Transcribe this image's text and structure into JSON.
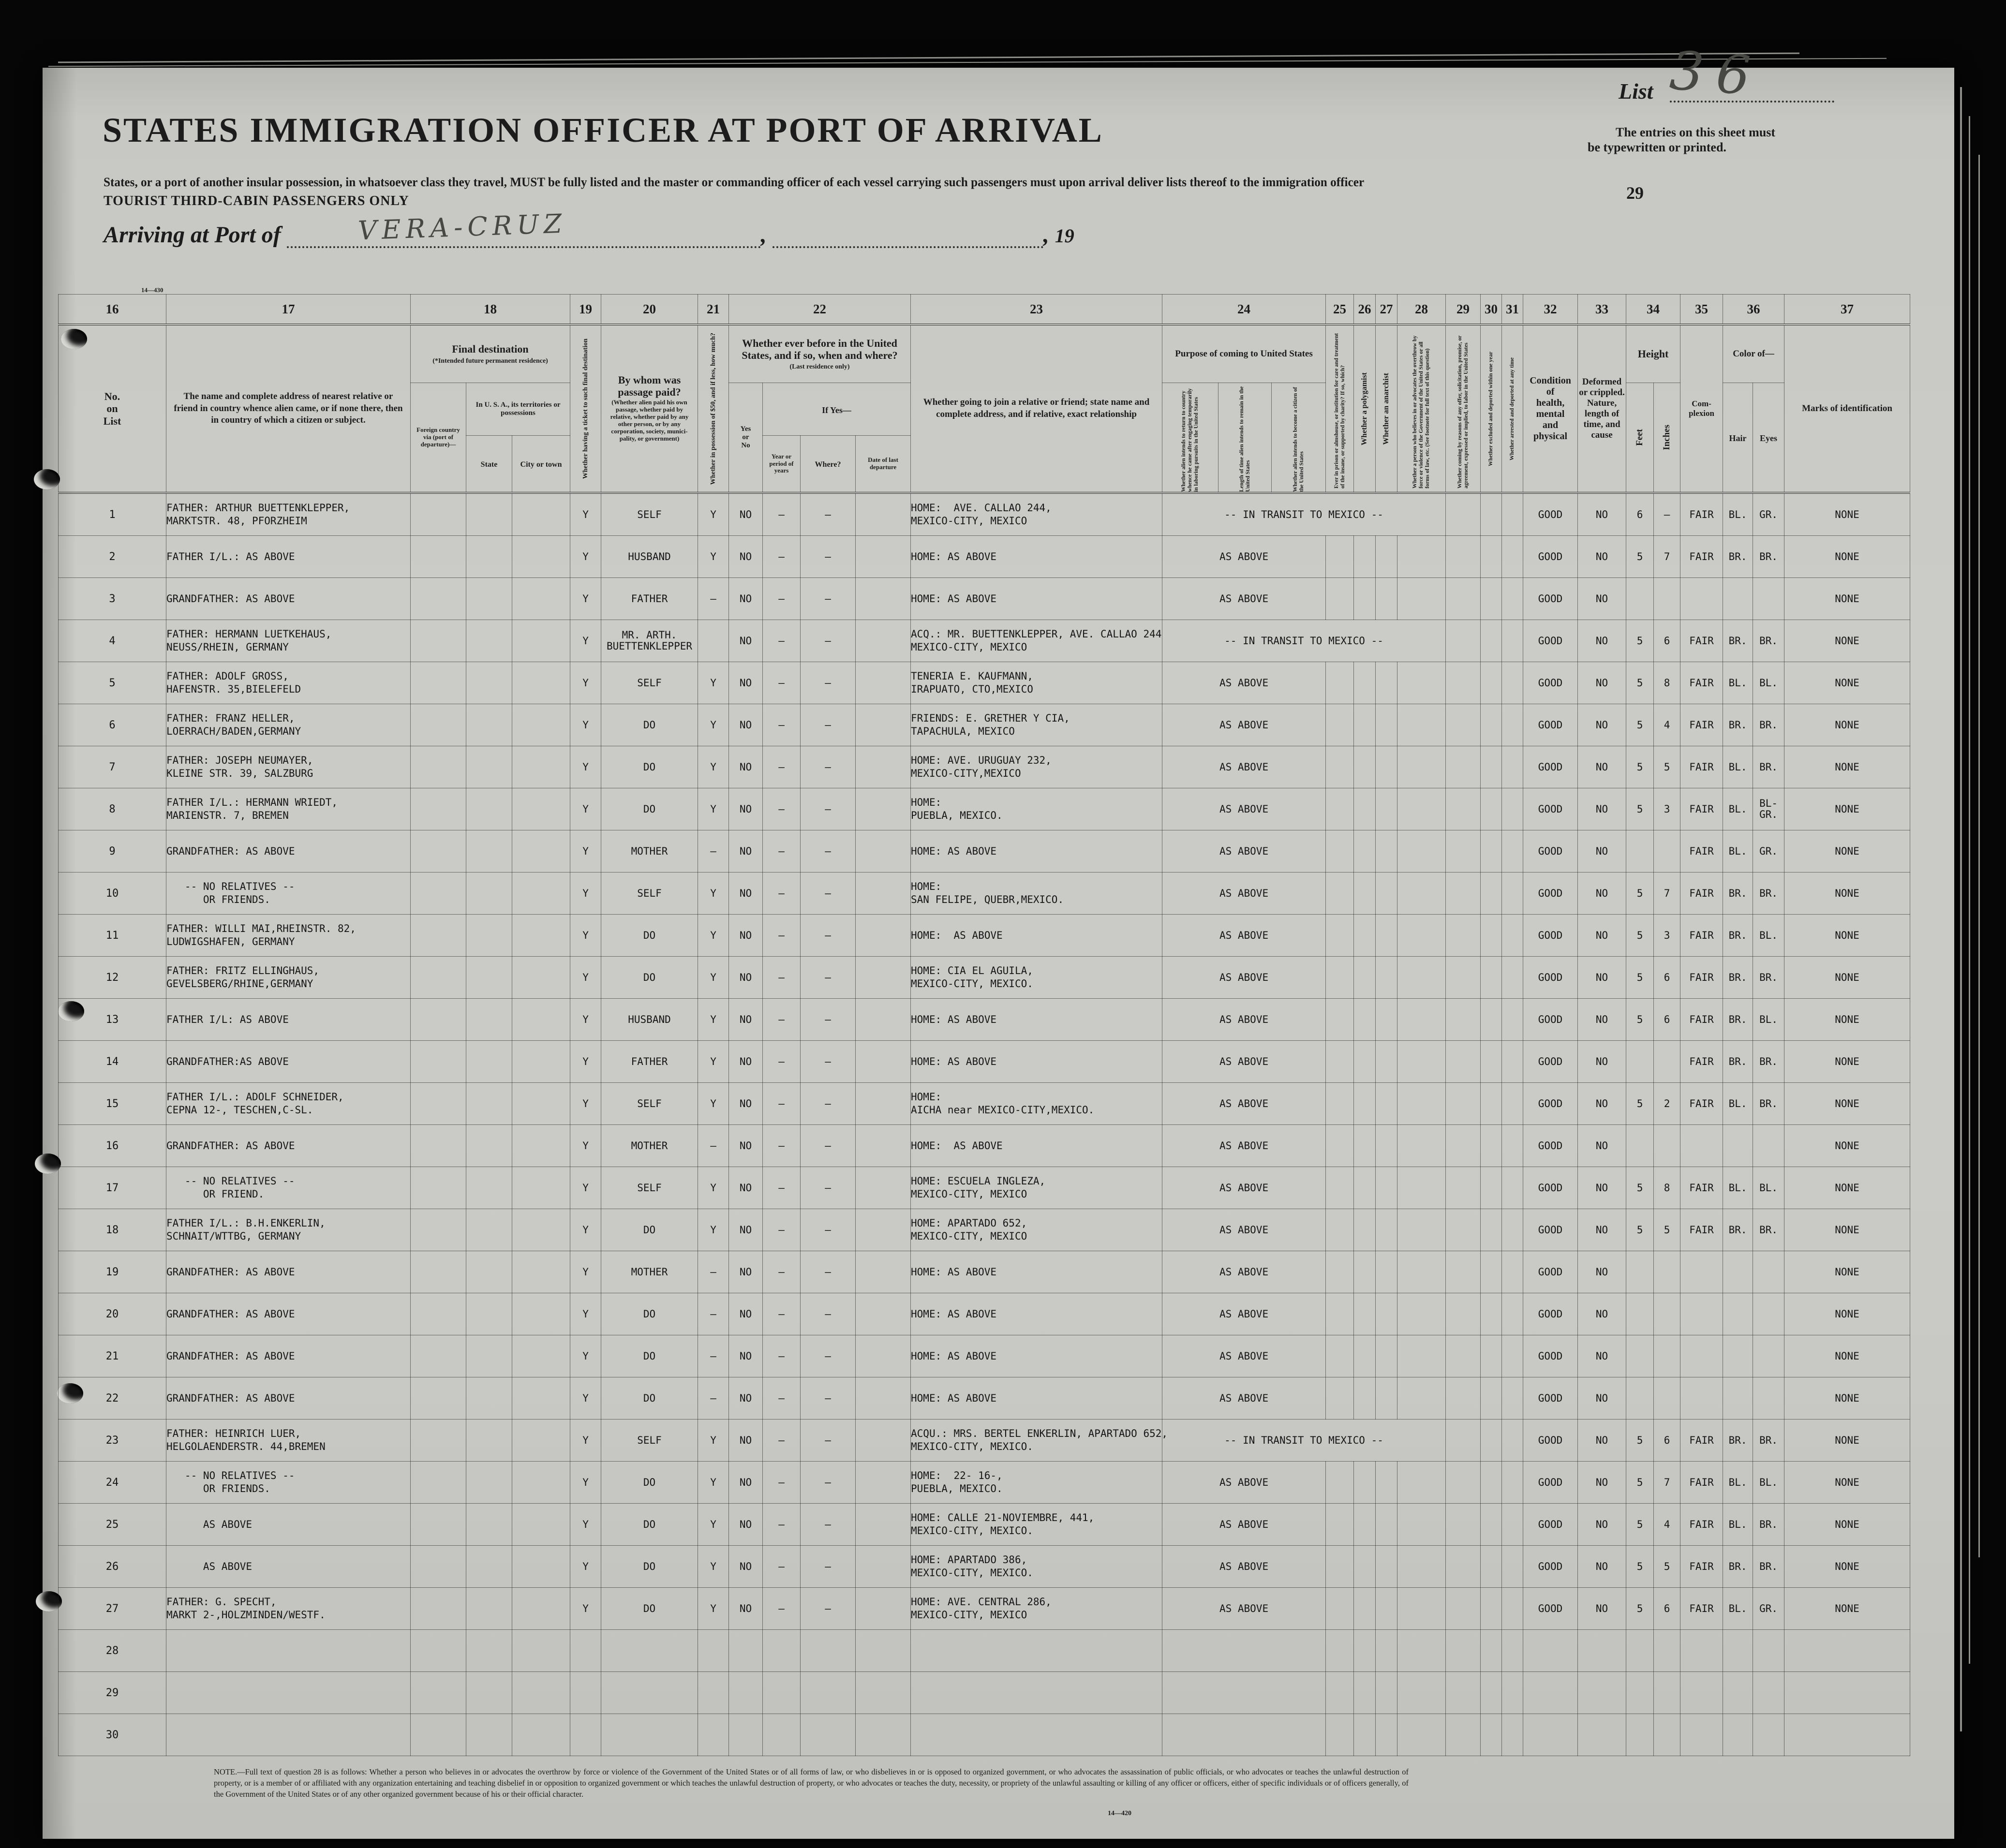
{
  "page": {
    "title": "STATES IMMIGRATION OFFICER AT PORT OF ARRIVAL",
    "subtitle": "States, or a port of another insular possession, in whatsoever class they travel, MUST be fully listed and the master or commanding officer of each vessel carrying such passengers must upon arrival deliver lists thereof to the immigration officer",
    "tourist_line": "TOURIST THIRD-CABIN PASSENGERS ONLY",
    "arriving_label": "Arriving at Port of",
    "port_value": "VERA-CRUZ",
    "year_prefix": "19",
    "list_label": "List",
    "list_number": "36",
    "entries_note_line1": "The entries on this sheet must",
    "entries_note_line2": "be typewritten or printed.",
    "page_number": "29",
    "form_number_top": "14—430",
    "form_number_bottom": "14—420"
  },
  "columns": {
    "numbers": [
      "16",
      "17",
      "18",
      "19",
      "20",
      "21",
      "22",
      "23",
      "24",
      "25",
      "26",
      "27",
      "28",
      "29",
      "30",
      "31",
      "32",
      "33",
      "34",
      "35",
      "36",
      "37"
    ],
    "c16": "No.\non\nList",
    "c17": "The name and complete address of nearest relative or friend in country whence alien came, or if none there, then in country of which a citizen or subject.",
    "c18": "Final destination",
    "c18_sub": "(*Intended future permanent residence)",
    "c18_foreign": "Foreign country via (port of depar­ture)—",
    "c18_usa": "In U. S. A., its terri­tories or possessions",
    "c18_state": "State",
    "c18_city": "City or town",
    "c19": "Whether having a ticket to such final destination",
    "c20": "By whom was passage paid?",
    "c20_sub": "(Whether alien paid his own passage, whether paid by relative, whether paid by any other person, or by any corporation, society, munici­pality, or government)",
    "c21": "Whether in possession of $50, and if less, how much?",
    "c22": "Whether ever before in the United States, and if so, when and where?",
    "c22_sub": "(Last residence only)",
    "c22_yesno": "Yes\nor\nNo",
    "c22_ifyes": "If Yes—",
    "c22_year": "Year or period of years",
    "c22_where": "Where?",
    "c22_date": "Date of last depar­ture",
    "c23": "Whether going to join a relative or friend; state name and complete address, and if relative, exact relationship",
    "c24": "Purpose of coming to United States",
    "c24_a": "Whether alien intends to re­turn to country whence he came after engaging tempo­rarily in laboring pursuits in the United States",
    "c24_b": "Length of time alien intends to remain in the United States",
    "c24_c": "Whether alien intends to be­come a citizen of the United States",
    "c25": "Ever in prison or almshouse, or institu­tion for care and treatment of the insane, or supported by charity? If so, which?",
    "c26": "Whether a polygamist",
    "c27": "Whether an anarchist",
    "c28": "Whether a person who believes in or advocates the overthrow by force or violence of the Government of the United States or all forms of law, etc. (See footnote for full text of this question)",
    "c29": "Whether coming by reasons of any offer, solicitation, promise, or agreement, expressed or implied, to labor in the United States",
    "c30": "Whether excluded and deported within one year",
    "c31": "Whether arrested and deported at any time",
    "c32": "Condition\nof\nhealth,\nmental\nand\nphysical",
    "c33": "Deformed\nor crippled.\nNature,\nlength of\ntime, and\ncause",
    "c34": "Height",
    "c34_feet": "Feet",
    "c34_inches": "Inches",
    "c35": "Com-\nplexion",
    "c36": "Color of—",
    "c36_hair": "Hair",
    "c36_eyes": "Eyes",
    "c37": "Marks of identification"
  },
  "rows": [
    {
      "no": "1",
      "name": "FATHER: ARTHUR BUETTENKLEPPER,\nMARKTSTR. 48, PFORZHEIM",
      "ticket": "Y",
      "paid_by": "SELF",
      "money": "Y",
      "before": "NO",
      "year": "–",
      "where": "–",
      "join": "HOME:  AVE. CALLAO 244,\nMEXICO-CITY, MEXICO",
      "purpose": "-- IN TRANSIT TO MEXICO --",
      "purpose_span": 7,
      "health": "GOOD",
      "deformed": "NO",
      "feet": "6",
      "inches": "–",
      "complexion": "FAIR",
      "hair": "BL.",
      "eyes": "GR.",
      "marks": "NONE"
    },
    {
      "no": "2",
      "name": "FATHER I/L.: AS ABOVE",
      "ticket": "Y",
      "paid_by": "HUSBAND",
      "money": "Y",
      "before": "NO",
      "year": "–",
      "where": "–",
      "join": "HOME: AS ABOVE",
      "purpose": "AS ABOVE",
      "purpose_span": 3,
      "health": "GOOD",
      "deformed": "NO",
      "feet": "5",
      "inches": "7",
      "complexion": "FAIR",
      "hair": "BR.",
      "eyes": "BR.",
      "marks": "NONE"
    },
    {
      "no": "3",
      "name": "GRANDFATHER: AS ABOVE",
      "ticket": "Y",
      "paid_by": "FATHER",
      "money": "–",
      "before": "NO",
      "year": "–",
      "where": "–",
      "join": "HOME: AS ABOVE",
      "purpose": "AS ABOVE",
      "purpose_span": 3,
      "health": "GOOD",
      "deformed": "NO",
      "feet": "",
      "inches": "",
      "complexion": "",
      "hair": "",
      "eyes": "",
      "marks": "NONE"
    },
    {
      "no": "4",
      "name": "FATHER: HERMANN LUETKEHAUS,\nNEUSS/RHEIN, GERMANY",
      "ticket": "Y",
      "paid_by": "MR. ARTH.\nBUETTENKLEPPER",
      "money": "",
      "before": "NO",
      "year": "–",
      "where": "–",
      "join": "ACQ.: MR. BUETTENKLEPPER, AVE. CALLAO 244\nMEXICO-CITY, MEXICO",
      "purpose": "-- IN TRANSIT TO MEXICO --",
      "purpose_span": 7,
      "health": "GOOD",
      "deformed": "NO",
      "feet": "5",
      "inches": "6",
      "complexion": "FAIR",
      "hair": "BR.",
      "eyes": "BR.",
      "marks": "NONE"
    },
    {
      "no": "5",
      "name": "FATHER: ADOLF GROSS,\nHAFENSTR. 35,BIELEFELD",
      "ticket": "Y",
      "paid_by": "SELF",
      "money": "Y",
      "before": "NO",
      "year": "–",
      "where": "–",
      "join": "TENERIA E. KAUFMANN,\nIRAPUATO, CTO,MEXICO",
      "purpose": "AS ABOVE",
      "purpose_span": 3,
      "health": "GOOD",
      "deformed": "NO",
      "feet": "5",
      "inches": "8",
      "complexion": "FAIR",
      "hair": "BL.",
      "eyes": "BL.",
      "marks": "NONE"
    },
    {
      "no": "6",
      "name": "FATHER: FRANZ HELLER,\nLOERRACH/BADEN,GERMANY",
      "ticket": "Y",
      "paid_by": "DO",
      "money": "Y",
      "before": "NO",
      "year": "–",
      "where": "–",
      "join": "FRIENDS: E. GRETHER Y CIA,\nTAPACHULA, MEXICO",
      "purpose": "AS ABOVE",
      "purpose_span": 3,
      "health": "GOOD",
      "deformed": "NO",
      "feet": "5",
      "inches": "4",
      "complexion": "FAIR",
      "hair": "BR.",
      "eyes": "BR.",
      "marks": "NONE"
    },
    {
      "no": "7",
      "name": "FATHER: JOSEPH NEUMAYER,\nKLEINE STR. 39, SALZBURG",
      "ticket": "Y",
      "paid_by": "DO",
      "money": "Y",
      "before": "NO",
      "year": "–",
      "where": "–",
      "join": "HOME: AVE. URUGUAY 232,\nMEXICO-CITY,MEXICO",
      "purpose": "AS ABOVE",
      "purpose_span": 3,
      "health": "GOOD",
      "deformed": "NO",
      "feet": "5",
      "inches": "5",
      "complexion": "FAIR",
      "hair": "BL.",
      "eyes": "BR.",
      "marks": "NONE"
    },
    {
      "no": "8",
      "name": "FATHER I/L.: HERMANN WRIEDT,\nMARIENSTR. 7, BREMEN",
      "ticket": "Y",
      "paid_by": "DO",
      "money": "Y",
      "before": "NO",
      "year": "–",
      "where": "–",
      "join": "HOME:\nPUEBLA, MEXICO.",
      "purpose": "AS ABOVE",
      "purpose_span": 3,
      "health": "GOOD",
      "deformed": "NO",
      "feet": "5",
      "inches": "3",
      "complexion": "FAIR",
      "hair": "BL.",
      "eyes": "BL-\nGR.",
      "marks": "NONE"
    },
    {
      "no": "9",
      "name": "GRANDFATHER: AS ABOVE",
      "ticket": "Y",
      "paid_by": "MOTHER",
      "money": "–",
      "before": "NO",
      "year": "–",
      "where": "–",
      "join": "HOME: AS ABOVE",
      "purpose": "AS ABOVE",
      "purpose_span": 3,
      "health": "GOOD",
      "deformed": "NO",
      "feet": "",
      "inches": "",
      "complexion": "FAIR",
      "hair": "BL.",
      "eyes": "GR.",
      "marks": "NONE"
    },
    {
      "no": "10",
      "name": "   -- NO RELATIVES --\n      OR FRIENDS.",
      "ticket": "Y",
      "paid_by": "SELF",
      "money": "Y",
      "before": "NO",
      "year": "–",
      "where": "–",
      "join": "HOME:\nSAN FELIPE, QUEBR,MEXICO.",
      "purpose": "AS ABOVE",
      "purpose_span": 3,
      "health": "GOOD",
      "deformed": "NO",
      "feet": "5",
      "inches": "7",
      "complexion": "FAIR",
      "hair": "BR.",
      "eyes": "BR.",
      "marks": "NONE"
    },
    {
      "no": "11",
      "name": "FATHER: WILLI MAI,RHEINSTR. 82,\nLUDWIGSHAFEN, GERMANY",
      "ticket": "Y",
      "paid_by": "DO",
      "money": "Y",
      "before": "NO",
      "year": "–",
      "where": "–",
      "join": "HOME:  AS ABOVE",
      "purpose": "AS ABOVE",
      "purpose_span": 3,
      "health": "GOOD",
      "deformed": "NO",
      "feet": "5",
      "inches": "3",
      "complexion": "FAIR",
      "hair": "BR.",
      "eyes": "BL.",
      "marks": "NONE"
    },
    {
      "no": "12",
      "name": "FATHER: FRITZ ELLINGHAUS,\nGEVELSBERG/RHINE,GERMANY",
      "ticket": "Y",
      "paid_by": "DO",
      "money": "Y",
      "before": "NO",
      "year": "–",
      "where": "–",
      "join": "HOME: CIA EL AGUILA,\nMEXICO-CITY, MEXICO.",
      "purpose": "AS ABOVE",
      "purpose_span": 3,
      "health": "GOOD",
      "deformed": "NO",
      "feet": "5",
      "inches": "6",
      "complexion": "FAIR",
      "hair": "BR.",
      "eyes": "BR.",
      "marks": "NONE"
    },
    {
      "no": "13",
      "name": "FATHER I/L: AS ABOVE",
      "ticket": "Y",
      "paid_by": "HUSBAND",
      "money": "Y",
      "before": "NO",
      "year": "–",
      "where": "–",
      "join": "HOME: AS ABOVE",
      "purpose": "AS ABOVE",
      "purpose_span": 3,
      "health": "GOOD",
      "deformed": "NO",
      "feet": "5",
      "inches": "6",
      "complexion": "FAIR",
      "hair": "BR.",
      "eyes": "BL.",
      "marks": "NONE"
    },
    {
      "no": "14",
      "name": "GRANDFATHER:AS ABOVE",
      "ticket": "Y",
      "paid_by": "FATHER",
      "money": "Y",
      "before": "NO",
      "year": "–",
      "where": "–",
      "join": "HOME: AS ABOVE",
      "purpose": "AS ABOVE",
      "purpose_span": 3,
      "health": "GOOD",
      "deformed": "NO",
      "feet": "",
      "inches": "",
      "complexion": "FAIR",
      "hair": "BR.",
      "eyes": "BR.",
      "marks": "NONE"
    },
    {
      "no": "15",
      "name": "FATHER I/L.: ADOLF SCHNEIDER,\nCEPNA 12-, TESCHEN,C-SL.",
      "ticket": "Y",
      "paid_by": "SELF",
      "money": "Y",
      "before": "NO",
      "year": "–",
      "where": "–",
      "join": "HOME:\nAICHA near MEXICO-CITY,MEXICO.",
      "purpose": "AS ABOVE",
      "purpose_span": 3,
      "health": "GOOD",
      "deformed": "NO",
      "feet": "5",
      "inches": "2",
      "complexion": "FAIR",
      "hair": "BL.",
      "eyes": "BR.",
      "marks": "NONE"
    },
    {
      "no": "16",
      "name": "GRANDFATHER: AS ABOVE",
      "ticket": "Y",
      "paid_by": "MOTHER",
      "money": "–",
      "before": "NO",
      "year": "–",
      "where": "–",
      "join": "HOME:  AS ABOVE",
      "purpose": "AS ABOVE",
      "purpose_span": 3,
      "health": "GOOD",
      "deformed": "NO",
      "feet": "",
      "inches": "",
      "complexion": "",
      "hair": "",
      "eyes": "",
      "marks": "NONE"
    },
    {
      "no": "17",
      "name": "   -- NO RELATIVES --\n      OR FRIEND.",
      "ticket": "Y",
      "paid_by": "SELF",
      "money": "Y",
      "before": "NO",
      "year": "–",
      "where": "–",
      "join": "HOME: ESCUELA INGLEZA,\nMEXICO-CITY, MEXICO",
      "purpose": "AS ABOVE",
      "purpose_span": 3,
      "health": "GOOD",
      "deformed": "NO",
      "feet": "5",
      "inches": "8",
      "complexion": "FAIR",
      "hair": "BL.",
      "eyes": "BL.",
      "marks": "NONE"
    },
    {
      "no": "18",
      "name": "FATHER I/L.: B.H.ENKERLIN,\nSCHNAIT/WTTBG, GERMANY",
      "ticket": "Y",
      "paid_by": "DO",
      "money": "Y",
      "before": "NO",
      "year": "–",
      "where": "–",
      "join": "HOME: APARTADO 652,\nMEXICO-CITY, MEXICO",
      "purpose": "AS ABOVE",
      "purpose_span": 3,
      "health": "GOOD",
      "deformed": "NO",
      "feet": "5",
      "inches": "5",
      "complexion": "FAIR",
      "hair": "BR.",
      "eyes": "BR.",
      "marks": "NONE"
    },
    {
      "no": "19",
      "name": "GRANDFATHER: AS ABOVE",
      "ticket": "Y",
      "paid_by": "MOTHER",
      "money": "–",
      "before": "NO",
      "year": "–",
      "where": "–",
      "join": "HOME: AS ABOVE",
      "purpose": "AS ABOVE",
      "purpose_span": 3,
      "health": "GOOD",
      "deformed": "NO",
      "feet": "",
      "inches": "",
      "complexion": "",
      "hair": "",
      "eyes": "",
      "marks": "NONE"
    },
    {
      "no": "20",
      "name": "GRANDFATHER: AS ABOVE",
      "ticket": "Y",
      "paid_by": "DO",
      "money": "–",
      "before": "NO",
      "year": "–",
      "where": "–",
      "join": "HOME: AS ABOVE",
      "purpose": "AS ABOVE",
      "purpose_span": 3,
      "health": "GOOD",
      "deformed": "NO",
      "feet": "",
      "inches": "",
      "complexion": "",
      "hair": "",
      "eyes": "",
      "marks": "NONE"
    },
    {
      "no": "21",
      "name": "GRANDFATHER: AS ABOVE",
      "ticket": "Y",
      "paid_by": "DO",
      "money": "–",
      "before": "NO",
      "year": "–",
      "where": "–",
      "join": "HOME: AS ABOVE",
      "purpose": "AS ABOVE",
      "purpose_span": 3,
      "health": "GOOD",
      "deformed": "NO",
      "feet": "",
      "inches": "",
      "complexion": "",
      "hair": "",
      "eyes": "",
      "marks": "NONE"
    },
    {
      "no": "22",
      "name": "GRANDFATHER: AS ABOVE",
      "ticket": "Y",
      "paid_by": "DO",
      "money": "–",
      "before": "NO",
      "year": "–",
      "where": "–",
      "join": "HOME: AS ABOVE",
      "purpose": "AS ABOVE",
      "purpose_span": 3,
      "health": "GOOD",
      "deformed": "NO",
      "feet": "",
      "inches": "",
      "complexion": "",
      "hair": "",
      "eyes": "",
      "marks": "NONE"
    },
    {
      "no": "23",
      "name": "FATHER: HEINRICH LUER,\nHELGOLAENDERSTR. 44,BREMEN",
      "ticket": "Y",
      "paid_by": "SELF",
      "money": "Y",
      "before": "NO",
      "year": "–",
      "where": "–",
      "join": "ACQU.: MRS. BERTEL ENKERLIN, APARTADO 652,\nMEXICO-CITY, MEXICO.",
      "purpose": "-- IN TRANSIT TO MEXICO --",
      "purpose_span": 7,
      "health": "GOOD",
      "deformed": "NO",
      "feet": "5",
      "inches": "6",
      "complexion": "FAIR",
      "hair": "BR.",
      "eyes": "BR.",
      "marks": "NONE"
    },
    {
      "no": "24",
      "name": "   -- NO RELATIVES --\n      OR FRIENDS.",
      "ticket": "Y",
      "paid_by": "DO",
      "money": "Y",
      "before": "NO",
      "year": "–",
      "where": "–",
      "join": "HOME:  22- 16-,\nPUEBLA, MEXICO.",
      "purpose": "AS ABOVE",
      "purpose_span": 3,
      "health": "GOOD",
      "deformed": "NO",
      "feet": "5",
      "inches": "7",
      "complexion": "FAIR",
      "hair": "BL.",
      "eyes": "BL.",
      "marks": "NONE"
    },
    {
      "no": "25",
      "name": "      AS ABOVE",
      "ticket": "Y",
      "paid_by": "DO",
      "money": "Y",
      "before": "NO",
      "year": "–",
      "where": "–",
      "join": "HOME: CALLE 21-NOVIEMBRE, 441,\nMEXICO-CITY, MEXICO.",
      "purpose": "AS ABOVE",
      "purpose_span": 3,
      "health": "GOOD",
      "deformed": "NO",
      "feet": "5",
      "inches": "4",
      "complexion": "FAIR",
      "hair": "BL.",
      "eyes": "BR.",
      "marks": "NONE"
    },
    {
      "no": "26",
      "name": "      AS ABOVE",
      "ticket": "Y",
      "paid_by": "DO",
      "money": "Y",
      "before": "NO",
      "year": "–",
      "where": "–",
      "join": "HOME: APARTADO 386,\nMEXICO-CITY, MEXICO.",
      "purpose": "AS ABOVE",
      "purpose_span": 3,
      "health": "GOOD",
      "deformed": "NO",
      "feet": "5",
      "inches": "5",
      "complexion": "FAIR",
      "hair": "BR.",
      "eyes": "BR.",
      "marks": "NONE"
    },
    {
      "no": "27",
      "name": "FATHER: G. SPECHT,\nMARKT 2-,HOLZMINDEN/WESTF.",
      "ticket": "Y",
      "paid_by": "DO",
      "money": "Y",
      "before": "NO",
      "year": "–",
      "where": "–",
      "join": "HOME: AVE. CENTRAL 286,\nMEXICO-CITY, MEXICO",
      "purpose": "AS ABOVE",
      "purpose_span": 3,
      "health": "GOOD",
      "deformed": "NO",
      "feet": "5",
      "inches": "6",
      "complexion": "FAIR",
      "hair": "BL.",
      "eyes": "GR.",
      "marks": "NONE"
    },
    {
      "no": "28",
      "name": "",
      "ticket": "",
      "paid_by": "",
      "money": "",
      "before": "",
      "year": "",
      "where": "",
      "join": "",
      "purpose": "",
      "purpose_span": 3,
      "health": "",
      "deformed": "",
      "feet": "",
      "inches": "",
      "complexion": "",
      "hair": "",
      "eyes": "",
      "marks": ""
    },
    {
      "no": "29",
      "name": "",
      "ticket": "",
      "paid_by": "",
      "money": "",
      "before": "",
      "year": "",
      "where": "",
      "join": "",
      "purpose": "",
      "purpose_span": 3,
      "health": "",
      "deformed": "",
      "feet": "",
      "inches": "",
      "complexion": "",
      "hair": "",
      "eyes": "",
      "marks": ""
    },
    {
      "no": "30",
      "name": "",
      "ticket": "",
      "paid_by": "",
      "money": "",
      "before": "",
      "year": "",
      "where": "",
      "join": "",
      "purpose": "",
      "purpose_span": 3,
      "health": "",
      "deformed": "",
      "feet": "",
      "inches": "",
      "complexion": "",
      "hair": "",
      "eyes": "",
      "marks": ""
    }
  ],
  "footnote": "NOTE.—Full text of question 28 is as follows:  Whether a person who believes in or advocates the overthrow by force or violence of the Government of the United States or of all forms of law, or who disbelieves in or is opposed to organized government, or who advocates the assassination of public officials, or who advocates or teaches the unlawful destruction of property, or is a member of or affiliated with any organization entertaining and teaching disbelief in or opposition to organized government or which teaches the unlawful destruction of property, or who advocates or teaches the duty, necessity, or propriety of the unlawful assaulting or killing of any officer or officers, either of specific individuals or of officers generally, of the Government of the United States or of any other organized government because of his or their official character."
}
